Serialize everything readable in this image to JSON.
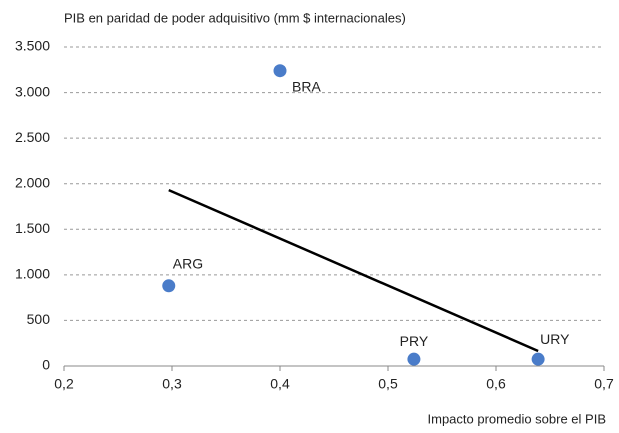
{
  "chart_data": {
    "type": "scatter",
    "y_axis_title": "PIB en paridad de poder adquisitivo (mm $ internacionales)",
    "x_axis_title": "Impacto promedio sobre el PIB",
    "labels": [
      "BRA",
      "ARG",
      "PRY",
      "URY"
    ],
    "x": [
      0.4,
      0.297,
      0.524,
      0.639
    ],
    "values": [
      3240,
      880,
      75,
      75
    ],
    "color": "#4a7cc9",
    "trendline": {
      "x": [
        0.297,
        0.639
      ],
      "values": [
        1930,
        165
      ],
      "color": "#000000"
    },
    "xlim": [
      0.2,
      0.7
    ],
    "xticks": [
      {
        "value": 0.2,
        "label": "0,2"
      },
      {
        "value": 0.3,
        "label": "0,3"
      },
      {
        "value": 0.4,
        "label": "0,4"
      },
      {
        "value": 0.5,
        "label": "0,5"
      },
      {
        "value": 0.6,
        "label": "0,6"
      },
      {
        "value": 0.7,
        "label": "0,7"
      }
    ],
    "ylim": [
      0,
      3500
    ],
    "yticks": [
      0,
      500,
      {
        "value": 1000,
        "label": "1.000"
      },
      {
        "value": 1500,
        "label": "1.500"
      },
      {
        "value": 2000,
        "label": "2.000"
      },
      {
        "value": 2500,
        "label": "2.500"
      },
      {
        "value": 3000,
        "label": "3.000"
      },
      {
        "value": 3500,
        "label": "3.500"
      }
    ],
    "grid": true
  }
}
